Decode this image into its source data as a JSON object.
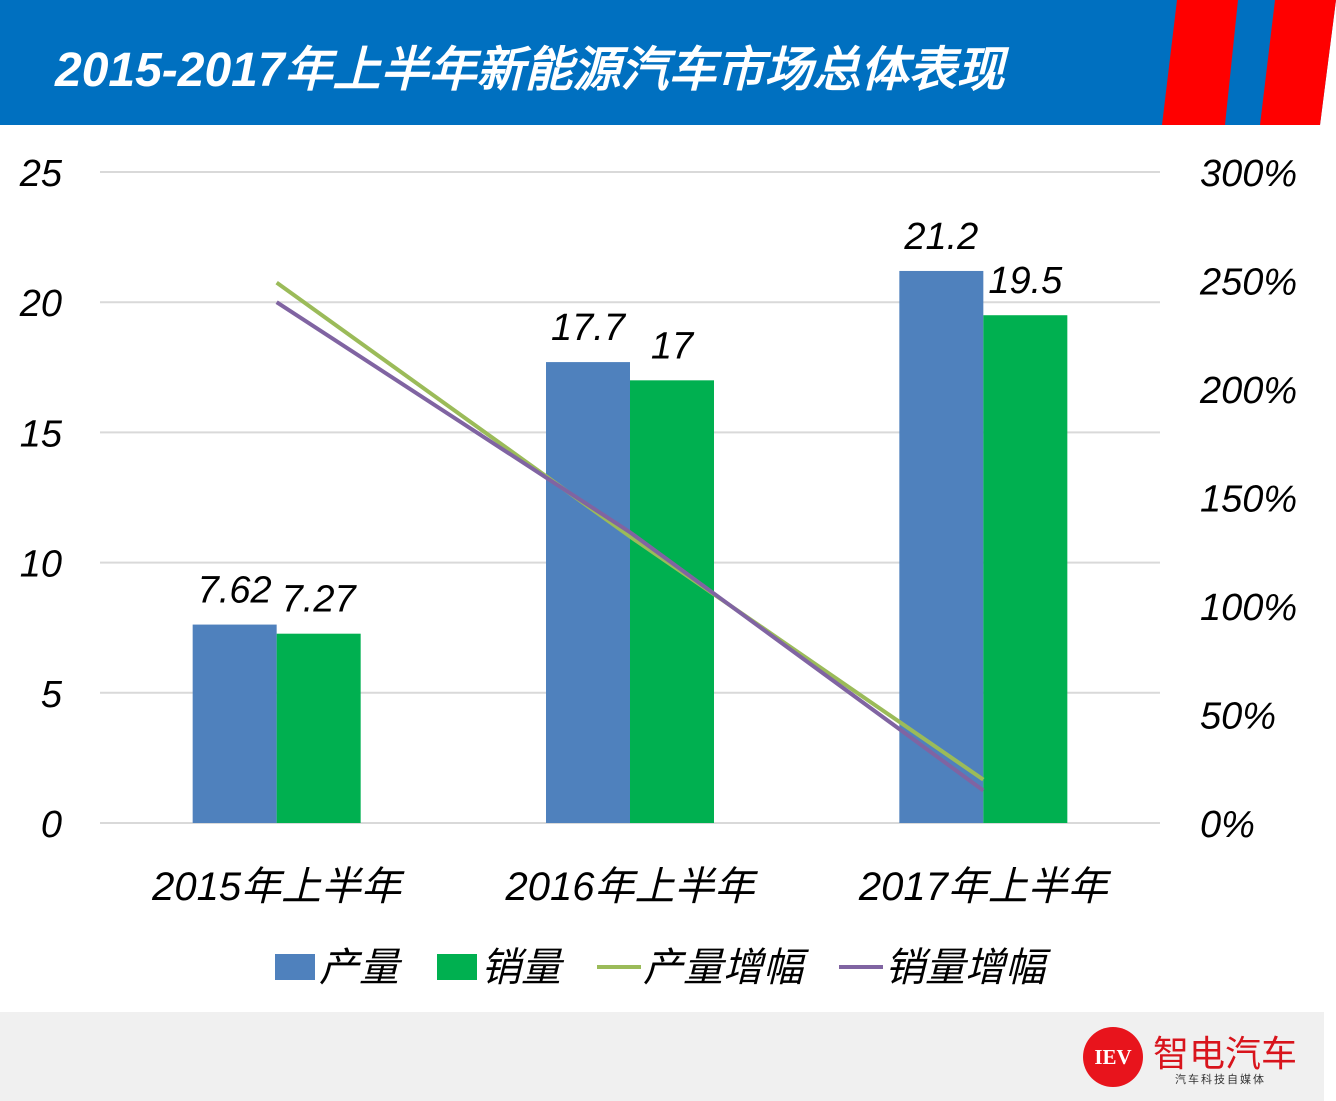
{
  "header": {
    "title": "2015-2017年上半年新能源汽车市场总体表现",
    "bg_color": "#0070c0",
    "stripe_color": "#ff0000"
  },
  "chart_data": {
    "type": "bar+line",
    "categories": [
      "2015年上半年",
      "2016年上半年",
      "2017年上半年"
    ],
    "series": [
      {
        "name": "产量",
        "type": "bar",
        "axis": "left",
        "color": "#4f81bd",
        "values": [
          7.62,
          17.7,
          21.2
        ],
        "labels": [
          "7.62",
          "17.7",
          "21.2"
        ]
      },
      {
        "name": "销量",
        "type": "bar",
        "axis": "left",
        "color": "#00b050",
        "values": [
          7.27,
          17,
          19.5
        ],
        "labels": [
          "7.27",
          "17",
          "19.5"
        ]
      },
      {
        "name": "产量增幅",
        "type": "line",
        "axis": "right",
        "color": "#9bbb59",
        "values": [
          249,
          132,
          20
        ]
      },
      {
        "name": "销量增幅",
        "type": "line",
        "axis": "right",
        "color": "#8064a2",
        "values": [
          240,
          134,
          15
        ]
      }
    ],
    "left_axis": {
      "ylim": [
        0,
        25
      ],
      "ticks": [
        "0",
        "5",
        "10",
        "15",
        "20",
        "25"
      ]
    },
    "right_axis": {
      "ylim": [
        0,
        300
      ],
      "ticks": [
        "0%",
        "50%",
        "100%",
        "150%",
        "200%",
        "250%",
        "300%"
      ]
    },
    "grid": true,
    "legend": "bottom"
  },
  "footer": {
    "logo_mark": "IEV",
    "logo_name": "智电汽车",
    "logo_tagline": "汽车科技自媒体"
  }
}
